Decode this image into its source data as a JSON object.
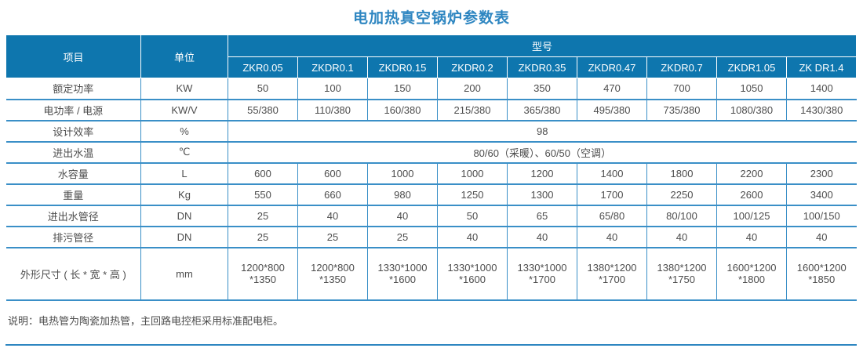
{
  "title": "电加热真空锅炉参数表",
  "colors": {
    "header_bg": "#0e76ae",
    "header_text": "#ffffff",
    "border": "#3a8fc7",
    "title": "#2e86c1",
    "text": "#4d4d4d",
    "page_bg": "#ffffff"
  },
  "table": {
    "item_header": "项目",
    "unit_header": "单位",
    "model_header": "型号",
    "models": [
      "ZKR0.05",
      "ZKDR0.1",
      "ZKDR0.15",
      "ZKDR0.2",
      "ZKDR0.35",
      "ZKDR0.47",
      "ZKDR0.7",
      "ZKDR1.05",
      "ZK DR1.4"
    ],
    "rows": [
      {
        "item": "额定功率",
        "unit": "KW",
        "values": [
          "50",
          "100",
          "150",
          "200",
          "350",
          "470",
          "700",
          "1050",
          "1400"
        ]
      },
      {
        "item": "电功率 / 电源",
        "unit": "KW/V",
        "values": [
          "55/380",
          "110/380",
          "160/380",
          "215/380",
          "365/380",
          "495/380",
          "735/380",
          "1080/380",
          "1430/380"
        ]
      },
      {
        "item": "设计效率",
        "unit": "%",
        "span": "98"
      },
      {
        "item": "进出水温",
        "unit": "℃",
        "span": "80/60（采暖）、60/50（空调）"
      },
      {
        "item": "水容量",
        "unit": "L",
        "values": [
          "600",
          "600",
          "1000",
          "1000",
          "1200",
          "1400",
          "1800",
          "2200",
          "2300"
        ]
      },
      {
        "item": "重量",
        "unit": "Kg",
        "values": [
          "550",
          "660",
          "980",
          "1250",
          "1300",
          "1700",
          "2250",
          "2600",
          "3400"
        ]
      },
      {
        "item": "进出水管径",
        "unit": "DN",
        "values": [
          "25",
          "40",
          "40",
          "50",
          "65",
          "65/80",
          "80/100",
          "100/125",
          "100/150"
        ]
      },
      {
        "item": "排污管径",
        "unit": "DN",
        "values": [
          "25",
          "25",
          "25",
          "40",
          "40",
          "40",
          "40",
          "40",
          "40"
        ]
      },
      {
        "item": "外形尺寸 ( 长 * 宽 * 高 )",
        "unit": "mm",
        "values": [
          "1200*800\n*1350",
          "1200*800\n*1350",
          "1330*1000\n*1600",
          "1330*1000\n*1600",
          "1330*1000\n*1700",
          "1380*1200\n*1700",
          "1380*1200\n*1750",
          "1600*1200\n*1800",
          "1600*1200\n*1850"
        ]
      }
    ]
  },
  "note": "说明：电热管为陶瓷加热管，主回路电控柜采用标准配电柜。"
}
